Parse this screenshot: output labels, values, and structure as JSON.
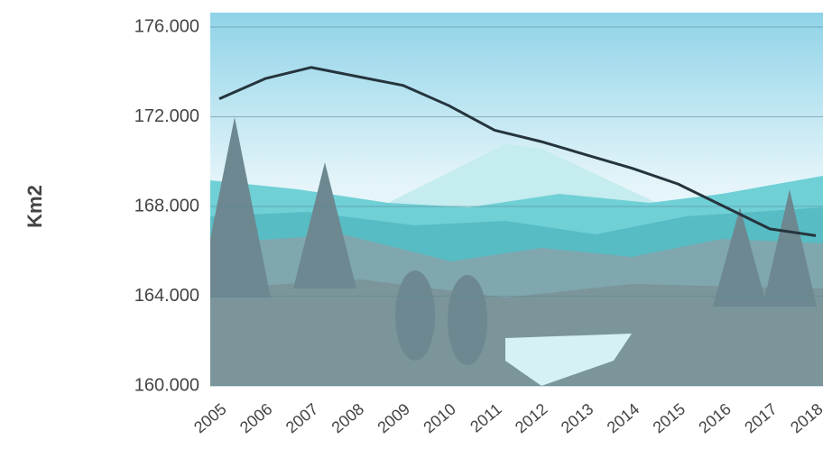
{
  "chart_data": {
    "type": "line",
    "y_axis_label": "Km2",
    "categories": [
      "2005",
      "2006",
      "2007",
      "2008",
      "2009",
      "2010",
      "2011",
      "2012",
      "2013",
      "2014",
      "2015",
      "2016",
      "2017",
      "2018"
    ],
    "series": [
      {
        "color": "#25343d",
        "values": [
          172800,
          173700,
          174200,
          173800,
          173400,
          172500,
          171400,
          170900,
          170300,
          169700,
          169000,
          168000,
          167000,
          166700
        ]
      }
    ],
    "ylim": [
      160000,
      176000
    ],
    "yticks": [
      {
        "value": 160000,
        "label": "160.000"
      },
      {
        "value": 164000,
        "label": "164.000"
      },
      {
        "value": 168000,
        "label": "168.000"
      },
      {
        "value": 172000,
        "label": "172.000"
      },
      {
        "value": 176000,
        "label": "176.000"
      }
    ],
    "grid": true
  }
}
